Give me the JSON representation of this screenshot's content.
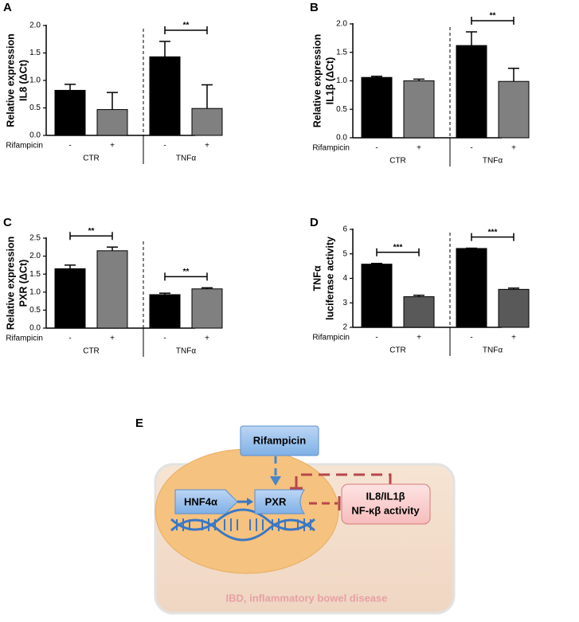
{
  "chart_data": [
    {
      "type": "bar",
      "panel": "A",
      "ylabel": [
        "Relative expression",
        "IL8 (ΔCt)"
      ],
      "categories": [
        "-",
        "+",
        "-",
        "+"
      ],
      "groups": [
        "CTR",
        "TNFα"
      ],
      "row_label": "Rifampicin",
      "values": [
        0.82,
        0.47,
        1.43,
        0.49
      ],
      "errors": [
        0.11,
        0.31,
        0.28,
        0.43
      ],
      "colors": [
        "#000000",
        "#808080",
        "#000000",
        "#808080"
      ],
      "ylim": [
        0,
        2
      ],
      "yticks": [
        {
          "value": 0,
          "label": "0.0"
        },
        {
          "value": 0.5,
          "label": "0.5"
        },
        {
          "value": 1,
          "label": "1.0"
        },
        {
          "value": 1.5,
          "label": "1.5"
        },
        {
          "value": 2,
          "label": "2.0"
        }
      ],
      "significance": [
        {
          "label": "**",
          "bars": [
            2,
            3
          ]
        }
      ]
    },
    {
      "type": "bar",
      "panel": "B",
      "ylabel": [
        "Relative expression",
        "IL1β (ΔCt)"
      ],
      "categories": [
        "-",
        "+",
        "-",
        "+"
      ],
      "groups": [
        "CTR",
        "TNFα"
      ],
      "row_label": "Rifampicin",
      "values": [
        1.06,
        1.0,
        1.62,
        0.99
      ],
      "errors": [
        0.02,
        0.03,
        0.24,
        0.23
      ],
      "colors": [
        "#000000",
        "#808080",
        "#000000",
        "#808080"
      ],
      "ylim": [
        0,
        2
      ],
      "yticks": [
        {
          "value": 0,
          "label": "0.0"
        },
        {
          "value": 0.5,
          "label": "0.5"
        },
        {
          "value": 1,
          "label": "1.0"
        },
        {
          "value": 1.5,
          "label": "1.5"
        },
        {
          "value": 2,
          "label": "2.0"
        }
      ],
      "significance": [
        {
          "label": "**",
          "bars": [
            2,
            3
          ]
        }
      ]
    },
    {
      "type": "bar",
      "panel": "C",
      "ylabel": [
        "Relative expression",
        "PXR (ΔCt)"
      ],
      "categories": [
        "-",
        "+",
        "-",
        "+"
      ],
      "groups": [
        "CTR",
        "TNFα"
      ],
      "row_label": "Rifampicin",
      "values": [
        1.65,
        2.15,
        0.93,
        1.09
      ],
      "errors": [
        0.1,
        0.1,
        0.04,
        0.03
      ],
      "colors": [
        "#000000",
        "#808080",
        "#000000",
        "#808080"
      ],
      "ylim": [
        0,
        2.5
      ],
      "yticks": [
        {
          "value": 0,
          "label": "0.0"
        },
        {
          "value": 0.5,
          "label": "0.5"
        },
        {
          "value": 1,
          "label": "1.0"
        },
        {
          "value": 1.5,
          "label": "1.5"
        },
        {
          "value": 2,
          "label": "2.0"
        },
        {
          "value": 2.5,
          "label": "2.5"
        }
      ],
      "significance": [
        {
          "label": "**",
          "bars": [
            0,
            1
          ]
        },
        {
          "label": "**",
          "bars": [
            2,
            3
          ]
        }
      ]
    },
    {
      "type": "bar",
      "panel": "D",
      "ylabel": [
        "TNFα",
        "luciferase activity"
      ],
      "categories": [
        "-",
        "+",
        "-",
        "+"
      ],
      "groups": [
        "CTR",
        "TNFα"
      ],
      "row_label": "Rifampicin",
      "values": [
        4.58,
        3.25,
        5.22,
        3.55
      ],
      "errors": [
        0.03,
        0.06,
        0.01,
        0.05
      ],
      "colors": [
        "#000000",
        "#595959",
        "#000000",
        "#595959"
      ],
      "ylim": [
        2,
        6
      ],
      "yticks": [
        2,
        3,
        4,
        5,
        6
      ],
      "significance": [
        {
          "label": "***",
          "bars": [
            0,
            1
          ]
        },
        {
          "label": "***",
          "bars": [
            2,
            3
          ]
        }
      ]
    }
  ],
  "diagram": {
    "panel": "E",
    "drug": "Rifampicin",
    "factor": "HNF4α",
    "receptor": "PXR",
    "target": [
      "IL8/IL1β",
      "NF-κβ activity"
    ],
    "caption": "IBD, inflammatory bowel disease"
  }
}
